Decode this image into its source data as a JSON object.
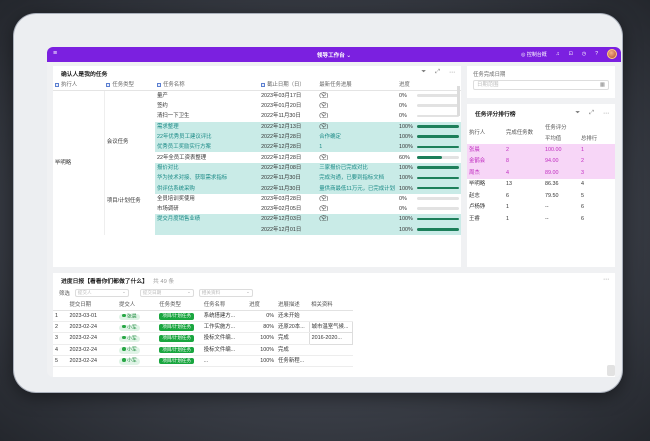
{
  "topbar": {
    "menu_icon": "menu-icon",
    "title": "领导工作台 ⌄",
    "right_label": "◎ 控制台概",
    "icons": [
      "bell-icon",
      "gift-icon",
      "clock-icon",
      "help-icon"
    ]
  },
  "tasks": {
    "title": "确认人是我的任务",
    "headers": [
      "执行人",
      "任务类型",
      "任务名称",
      "截止日期（日）",
      "最新任务进展",
      "进度"
    ],
    "executor": "毕明略",
    "type_a": "会议任务",
    "type_b": "项目/计划任务",
    "rows": [
      {
        "name": "量产",
        "date": "2023年03月17日",
        "note": "(空)",
        "pct": "0%",
        "fill": 0,
        "hl": false
      },
      {
        "name": "签约",
        "date": "2023年01月20日",
        "note": "(空)",
        "pct": "0%",
        "fill": 0,
        "hl": false
      },
      {
        "name": "清扫一下卫生",
        "date": "2022年11月30日",
        "note": "(空)",
        "pct": "0%",
        "fill": 0,
        "hl": false
      },
      {
        "name": "需求整理",
        "date": "2022年12月13日",
        "note": "(空)",
        "pct": "100%",
        "fill": 1,
        "hl": true
      },
      {
        "name": "22年优秀员工建议评比",
        "date": "2022年12月28日",
        "note": "合作确定",
        "pct": "100%",
        "fill": 1,
        "hl": true
      },
      {
        "name": "优秀员工奖励实行方案",
        "date": "2022年12月28日",
        "note": "1",
        "pct": "100%",
        "fill": 1,
        "hl": true
      },
      {
        "name": "22年全员工资表整理",
        "date": "2022年12月28日",
        "note": "(空)",
        "pct": "60%",
        "fill": 0.6,
        "hl": false
      },
      {
        "name": "报价对比",
        "date": "2022年12月08日",
        "note": "三家报价已完成对比",
        "pct": "100%",
        "fill": 1,
        "hl": true
      },
      {
        "name": "华为技术对接、获取需求指标",
        "date": "2022年11月30日",
        "note": "完成沟通，已要到指标文档",
        "pct": "100%",
        "fill": 1,
        "hl": true
      },
      {
        "name": "供评估系统采购",
        "date": "2022年11月30日",
        "note": "量供商最低11万元，已完成计划",
        "pct": "100%",
        "fill": 1,
        "hl": true
      },
      {
        "name": "全员培训奖使用",
        "date": "2023年03月28日",
        "note": "(空)",
        "pct": "0%",
        "fill": 0,
        "hl": false
      },
      {
        "name": "市场调研",
        "date": "2023年02月05日",
        "note": "(空)",
        "pct": "0%",
        "fill": 0,
        "hl": false
      },
      {
        "name": "提交月度销售业绩",
        "date": "2022年12月03日",
        "note": "(空)",
        "pct": "100%",
        "fill": 1,
        "hl": true
      },
      {
        "name": "",
        "date": "2022年12月01日",
        "note": "",
        "pct": "100%",
        "fill": 1,
        "hl": true
      }
    ]
  },
  "date_filter": {
    "label": "任务完成日期",
    "placeholder": "日期范围"
  },
  "ranking": {
    "title": "任务评分排行榜",
    "col_person": "执行人",
    "col_count": "完成任务数",
    "col_score": "任务评分",
    "col_avg": "平均值",
    "col_total": "总排行",
    "rows": [
      {
        "name": "张晨",
        "count": "2",
        "avg": "100.00",
        "rank": "1",
        "pink": true
      },
      {
        "name": "金鹤会",
        "count": "8",
        "avg": "94.00",
        "rank": "2",
        "pink": true
      },
      {
        "name": "周杰",
        "count": "4",
        "avg": "89.00",
        "rank": "3",
        "pink": true
      },
      {
        "name": "毕明略",
        "count": "13",
        "avg": "86.36",
        "rank": "4",
        "pink": false
      },
      {
        "name": "赵志",
        "count": "6",
        "avg": "79.50",
        "rank": "5",
        "pink": false
      },
      {
        "name": "卢杨铮",
        "count": "1",
        "avg": "--",
        "rank": "6",
        "pink": false
      },
      {
        "name": "王睿",
        "count": "1",
        "avg": "--",
        "rank": "6",
        "pink": false
      }
    ]
  },
  "log": {
    "title": "进度日报【看看你们都做了什么】",
    "count": "共 49 条",
    "filter_label": "筛选",
    "filters": [
      "提交人",
      "提交日期",
      "相关资料"
    ],
    "headers": [
      "",
      "提交日期",
      "提交人",
      "任务类型",
      "任务名称",
      "进度",
      "进展描述",
      "相关资料"
    ],
    "rows": [
      {
        "i": "1",
        "date": "2023-03-01",
        "user": "张晨",
        "type": "项目/计划任务",
        "task": "系统搭建方...",
        "pct": "0%",
        "desc": "还未开始",
        "ref": ""
      },
      {
        "i": "2",
        "date": "2023-02-24",
        "user": "小军",
        "type": "项目/计划任务",
        "task": "工作实施方...",
        "pct": "80%",
        "desc": "还原20本...",
        "ref": "城市温室气候..."
      },
      {
        "i": "3",
        "date": "2023-02-24",
        "user": "小军",
        "type": "项目/计划任务",
        "task": "投标文件编...",
        "pct": "100%",
        "desc": "完成",
        "ref": "2016-2020..."
      },
      {
        "i": "4",
        "date": "2023-02-24",
        "user": "小军",
        "type": "项目/计划任务",
        "task": "投标文件编...",
        "pct": "100%",
        "desc": "完成",
        "ref": ""
      },
      {
        "i": "5",
        "date": "2023-02-24",
        "user": "小军",
        "type": "项目/计划任务",
        "task": "...",
        "pct": "100%",
        "desc": "任务新程...",
        "ref": ""
      }
    ]
  },
  "colors": {
    "topbar": "#7b20e0",
    "teal_row": "#c9ebe7",
    "progress": "#1c7f5a",
    "pink_row": "#f7d6f7",
    "pink_text": "#c02cc0",
    "tag_green": "#19a63f"
  }
}
